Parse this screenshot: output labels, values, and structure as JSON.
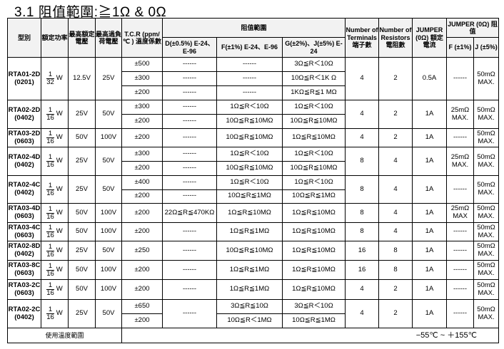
{
  "title": "3.1 阻值範圍:≧1Ω & 0Ω",
  "header": {
    "type": "型別",
    "power": "額定功率",
    "rated_voltage": "最高額定電壓",
    "overload_voltage": "最高過負荷電壓",
    "tcr": "T.C.R (ppm/℃ ) 溫度係數",
    "range_group": "阻值範圍",
    "d": "D(±0.5%) E-24、E-96",
    "f": "F(±1%) E-24、E-96",
    "g": "G(±2%)、J(±5%) E-24",
    "terminals": "Number of Terminals 端子數",
    "resistors": "Number of Resistors 電阻數",
    "jumper_current": "JUMPER (0Ω) 額定電流",
    "jumper_res": "JUMPER (0Ω) 阻值",
    "jumper_f": "F (±1%)",
    "jumper_j": "J (±5%)"
  },
  "rows": [
    {
      "type": "RTA01-2D",
      "size": "(0201)",
      "num": "1",
      "den": "32",
      "unit": "W",
      "rv": "12.5V",
      "ov": "25V",
      "sub": [
        {
          "tcr": "±500",
          "d": "------",
          "f": "------",
          "g": "3Ω≦R＜10Ω"
        },
        {
          "tcr": "±300",
          "d": "------",
          "f": "------",
          "g": "10Ω≦R＜1K Ω"
        },
        {
          "tcr": "±200",
          "d": "------",
          "f": "------",
          "g": "1KΩ≦R≦1 MΩ"
        }
      ],
      "terminals": "4",
      "resistors": "2",
      "current": "0.5A",
      "jf": "------",
      "jj": "50mΩ MAX."
    },
    {
      "type": "RTA02-2D",
      "size": "(0402)",
      "num": "1",
      "den": "16",
      "unit": "W",
      "rv": "25V",
      "ov": "50V",
      "sub": [
        {
          "tcr": "±300",
          "d": "------",
          "f": "1Ω≦R＜10Ω",
          "g": "1Ω≦R＜10Ω"
        },
        {
          "tcr": "±200",
          "d": "------",
          "f": "10Ω≦R≦10MΩ",
          "g": "10Ω≦R≦10MΩ"
        }
      ],
      "terminals": "4",
      "resistors": "2",
      "current": "1A",
      "jf": "25mΩ MAX.",
      "jj": "50mΩ MAX."
    },
    {
      "type": "RTA03-2D",
      "size": "(0603)",
      "num": "1",
      "den": "16",
      "unit": "W",
      "rv": "50V",
      "ov": "100V",
      "sub": [
        {
          "tcr": "±200",
          "d": "------",
          "f": "10Ω≦R≦10MΩ",
          "g": "1Ω≦R≦10MΩ"
        }
      ],
      "terminals": "4",
      "resistors": "2",
      "current": "1A",
      "jf": "------",
      "jj": "50mΩ MAX."
    },
    {
      "type": "RTA02-4D",
      "size": "(0402)",
      "num": "1",
      "den": "16",
      "unit": "W",
      "rv": "25V",
      "ov": "50V",
      "sub": [
        {
          "tcr": "±300",
          "d": "------",
          "f": "1Ω≦R＜10Ω",
          "g": "1Ω≦R＜10Ω"
        },
        {
          "tcr": "±200",
          "d": "------",
          "f": "10Ω≦R≦10MΩ",
          "g": "10Ω≦R≦10MΩ"
        }
      ],
      "terminals": "8",
      "resistors": "4",
      "current": "1A",
      "jf": "25mΩ MAX.",
      "jj": "50mΩ MAX."
    },
    {
      "type": "RTA02-4C",
      "size": "(0402)",
      "num": "1",
      "den": "16",
      "unit": "W",
      "rv": "25V",
      "ov": "50V",
      "sub": [
        {
          "tcr": "±400",
          "d": "------",
          "f": "1Ω≦R＜10Ω",
          "g": "1Ω≦R＜10Ω"
        },
        {
          "tcr": "±200",
          "d": "------",
          "f": "10Ω≦R≦1MΩ",
          "g": "10Ω≦R≦1MΩ"
        }
      ],
      "terminals": "8",
      "resistors": "4",
      "current": "1A",
      "jf": "------",
      "jj": "50mΩ MAX."
    },
    {
      "type": "RTA03-4D",
      "size": "(0603)",
      "num": "1",
      "den": "16",
      "unit": "W",
      "rv": "50V",
      "ov": "100V",
      "sub": [
        {
          "tcr": "±200",
          "d": "22Ω≦R≦470KΩ",
          "f": "1Ω≦R≦10MΩ",
          "g": "1Ω≦R≦10MΩ"
        }
      ],
      "terminals": "8",
      "resistors": "4",
      "current": "1A",
      "jf": "25mΩ MAX",
      "jj": "50mΩ MAX."
    },
    {
      "type": "RTA03-4C",
      "size": "(0603)",
      "num": "1",
      "den": "16",
      "unit": "W",
      "rv": "50V",
      "ov": "100V",
      "sub": [
        {
          "tcr": "±200",
          "d": "------",
          "f": "1Ω≦R≦1MΩ",
          "g": "1Ω≦R≦10MΩ"
        }
      ],
      "terminals": "8",
      "resistors": "4",
      "current": "1A",
      "jf": "------",
      "jj": "50mΩ MAX."
    },
    {
      "type": "RTA02-8D",
      "size": "(0402)",
      "num": "1",
      "den": "16",
      "unit": "W",
      "rv": "25V",
      "ov": "50V",
      "sub": [
        {
          "tcr": "±250",
          "d": "------",
          "f": "10Ω≦R≦10MΩ",
          "g": "1Ω≦R≦10MΩ"
        }
      ],
      "terminals": "16",
      "resistors": "8",
      "current": "1A",
      "jf": "------",
      "jj": "50mΩ MAX."
    },
    {
      "type": "RTA03-8C",
      "size": "(0603)",
      "num": "1",
      "den": "16",
      "unit": "W",
      "rv": "50V",
      "ov": "100V",
      "sub": [
        {
          "tcr": "±200",
          "d": "------",
          "f": "1Ω≦R≦1MΩ",
          "g": "1Ω≦R≦10MΩ"
        }
      ],
      "terminals": "16",
      "resistors": "8",
      "current": "1A",
      "jf": "------",
      "jj": "50mΩ MAX."
    },
    {
      "type": "RTA03-2C",
      "size": "(0603)",
      "num": "1",
      "den": "16",
      "unit": "W",
      "rv": "50V",
      "ov": "100V",
      "sub": [
        {
          "tcr": "±200",
          "d": "------",
          "f": "1Ω≦R≦1MΩ",
          "g": "1Ω≦R≦10MΩ"
        }
      ],
      "terminals": "4",
      "resistors": "2",
      "current": "1A",
      "jf": "------",
      "jj": "50mΩ MAX."
    },
    {
      "type": "RTA02-2C",
      "size": "(0402)",
      "num": "1",
      "den": "16",
      "unit": "W",
      "rv": "25V",
      "ov": "50V",
      "d_merged": "------",
      "sub": [
        {
          "tcr": "±650",
          "f": "3Ω≦R≦10Ω",
          "g": "3Ω≦R＜10Ω"
        },
        {
          "tcr": "±200",
          "f": "10Ω≦R＜1MΩ",
          "g": "10Ω≦R≦1MΩ"
        }
      ],
      "terminals": "4",
      "resistors": "2",
      "current": "1A",
      "jf": "------",
      "jj": "50mΩ MAX."
    }
  ],
  "footer": {
    "label": "使用溫度範圍",
    "value": "−55℃ ~ ＋155℃"
  }
}
